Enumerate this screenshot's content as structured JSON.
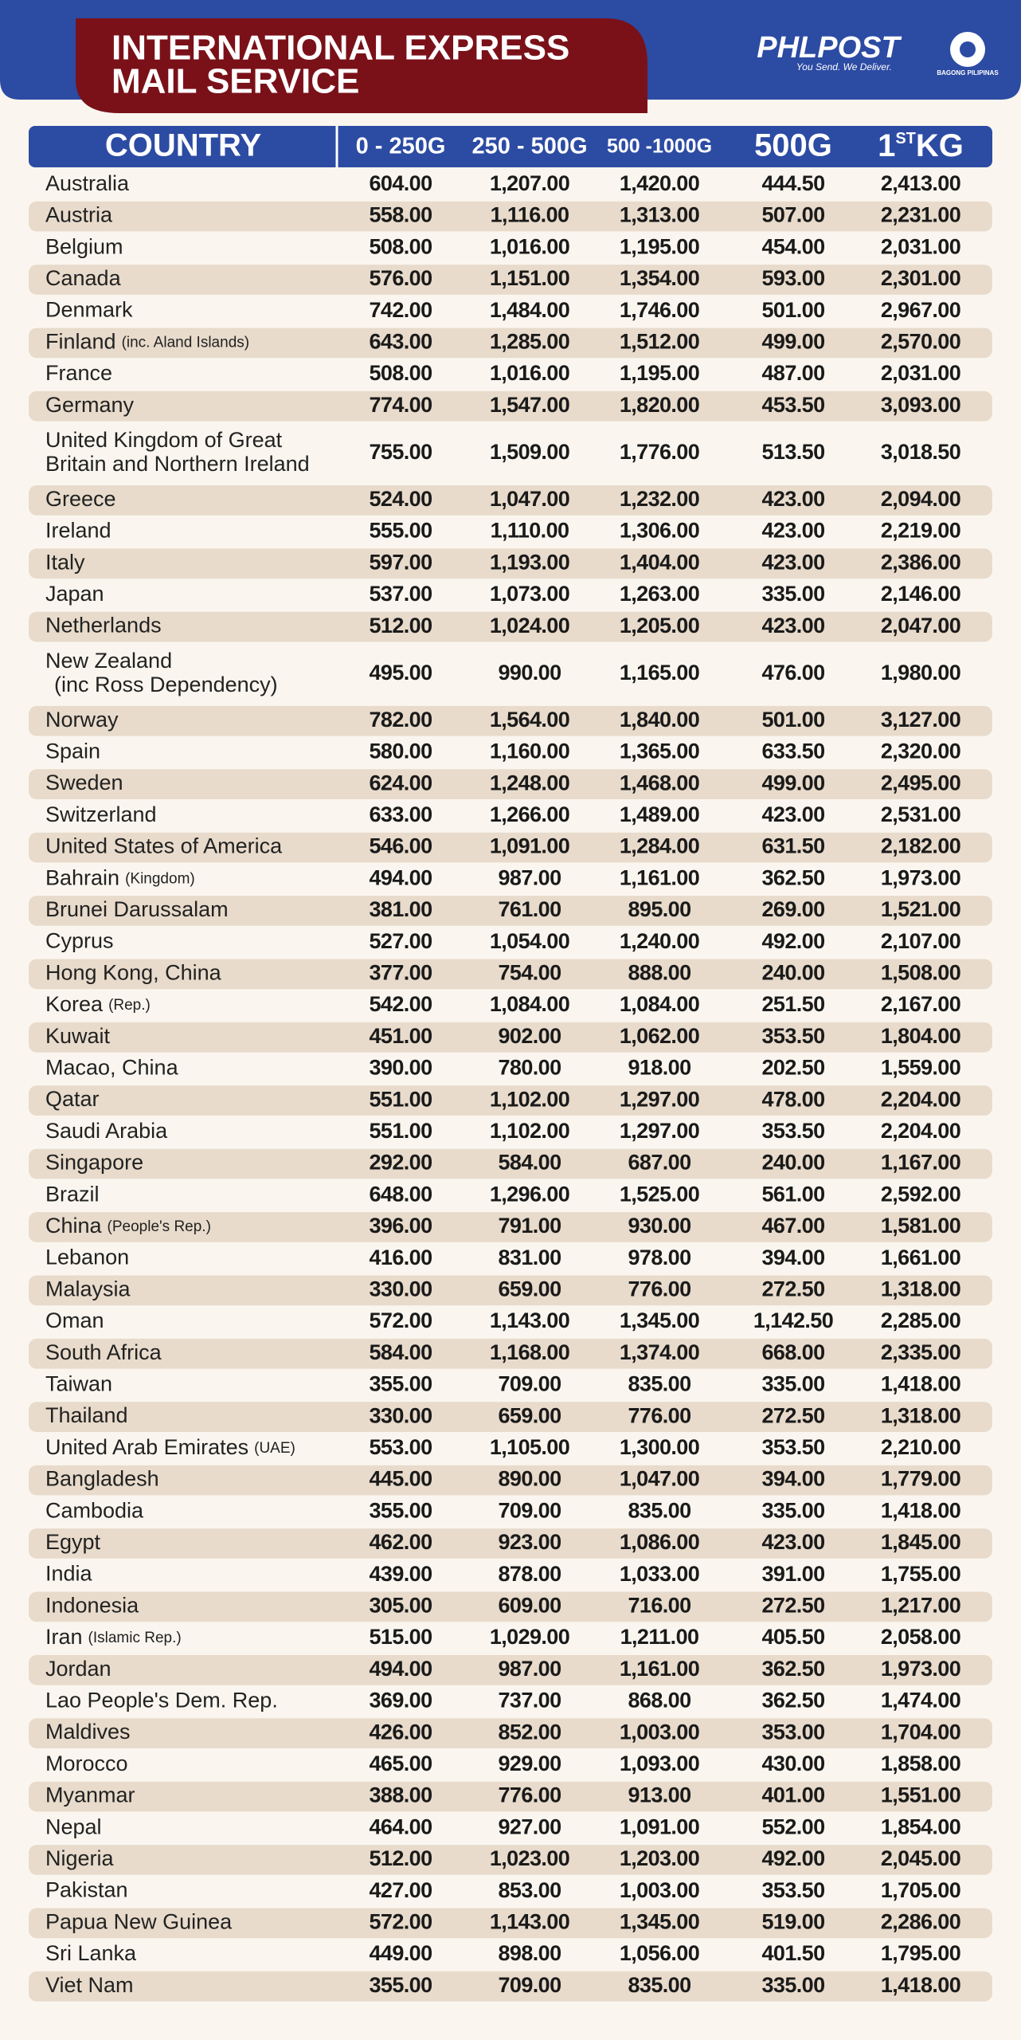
{
  "header": {
    "title_lines": [
      "INTERNATIONAL EXPRESS",
      "MAIL SERVICE"
    ],
    "logo": "PHLPOST",
    "tagline": "You Send. We Deliver.",
    "emblem_text": "BAGONG PILIPINAS"
  },
  "table": {
    "columns": [
      "COUNTRY",
      "0 - 250G",
      "250 - 500G",
      "500 -1000G",
      "500G",
      {
        "main": "1",
        "sup": "ST",
        "rest": "KG"
      }
    ],
    "rows": [
      {
        "country": "Australia",
        "rates": [
          "604.00",
          "1,207.00",
          "1,420.00",
          "444.50",
          "2,413.00"
        ]
      },
      {
        "country": "Austria",
        "rates": [
          "558.00",
          "1,116.00",
          "1,313.00",
          "507.00",
          "2,231.00"
        ]
      },
      {
        "country": "Belgium",
        "rates": [
          "508.00",
          "1,016.00",
          "1,195.00",
          "454.00",
          "2,031.00"
        ]
      },
      {
        "country": "Canada",
        "rates": [
          "576.00",
          "1,151.00",
          "1,354.00",
          "593.00",
          "2,301.00"
        ]
      },
      {
        "country": "Denmark",
        "rates": [
          "742.00",
          "1,484.00",
          "1,746.00",
          "501.00",
          "2,967.00"
        ]
      },
      {
        "country": "Finland",
        "note": "(inc. Aland Islands)",
        "rates": [
          "643.00",
          "1,285.00",
          "1,512.00",
          "499.00",
          "2,570.00"
        ]
      },
      {
        "country": "France",
        "rates": [
          "508.00",
          "1,016.00",
          "1,195.00",
          "487.00",
          "2,031.00"
        ]
      },
      {
        "country": "Germany",
        "rates": [
          "774.00",
          "1,547.00",
          "1,820.00",
          "453.50",
          "3,093.00"
        ]
      },
      {
        "country_lines": [
          "United Kingdom of Great",
          "Britain and Northern Ireland"
        ],
        "rates": [
          "755.00",
          "1,509.00",
          "1,776.00",
          "513.50",
          "3,018.50"
        ]
      },
      {
        "country": "Greece",
        "rates": [
          "524.00",
          "1,047.00",
          "1,232.00",
          "423.00",
          "2,094.00"
        ]
      },
      {
        "country": "Ireland",
        "rates": [
          "555.00",
          "1,110.00",
          "1,306.00",
          "423.00",
          "2,219.00"
        ]
      },
      {
        "country": "Italy",
        "rates": [
          "597.00",
          "1,193.00",
          "1,404.00",
          "423.00",
          "2,386.00"
        ]
      },
      {
        "country": "Japan",
        "rates": [
          "537.00",
          "1,073.00",
          "1,263.00",
          "335.00",
          "2,146.00"
        ]
      },
      {
        "country": "Netherlands",
        "rates": [
          "512.00",
          "1,024.00",
          "1,205.00",
          "423.00",
          "2,047.00"
        ]
      },
      {
        "country_lines": [
          "New Zealand",
          "(inc Ross Dependency)"
        ],
        "rates": [
          "495.00",
          "990.00",
          "1,165.00",
          "476.00",
          "1,980.00"
        ]
      },
      {
        "country": "Norway",
        "rates": [
          "782.00",
          "1,564.00",
          "1,840.00",
          "501.00",
          "3,127.00"
        ]
      },
      {
        "country": "Spain",
        "rates": [
          "580.00",
          "1,160.00",
          "1,365.00",
          "633.50",
          "2,320.00"
        ]
      },
      {
        "country": "Sweden",
        "rates": [
          "624.00",
          "1,248.00",
          "1,468.00",
          "499.00",
          "2,495.00"
        ]
      },
      {
        "country": "Switzerland",
        "rates": [
          "633.00",
          "1,266.00",
          "1,489.00",
          "423.00",
          "2,531.00"
        ]
      },
      {
        "country": "United States of America",
        "rates": [
          "546.00",
          "1,091.00",
          "1,284.00",
          "631.50",
          "2,182.00"
        ]
      },
      {
        "country": "Bahrain",
        "note": "(Kingdom)",
        "rates": [
          "494.00",
          "987.00",
          "1,161.00",
          "362.50",
          "1,973.00"
        ]
      },
      {
        "country": "Brunei Darussalam",
        "rates": [
          "381.00",
          "761.00",
          "895.00",
          "269.00",
          "1,521.00"
        ]
      },
      {
        "country": "Cyprus",
        "rates": [
          "527.00",
          "1,054.00",
          "1,240.00",
          "492.00",
          "2,107.00"
        ]
      },
      {
        "country": "Hong Kong, China",
        "rates": [
          "377.00",
          "754.00",
          "888.00",
          "240.00",
          "1,508.00"
        ]
      },
      {
        "country": "Korea",
        "note": "(Rep.)",
        "rates": [
          "542.00",
          "1,084.00",
          "1,084.00",
          "251.50",
          "2,167.00"
        ]
      },
      {
        "country": "Kuwait",
        "rates": [
          "451.00",
          "902.00",
          "1,062.00",
          "353.50",
          "1,804.00"
        ]
      },
      {
        "country": "Macao, China",
        "rates": [
          "390.00",
          "780.00",
          "918.00",
          "202.50",
          "1,559.00"
        ]
      },
      {
        "country": "Qatar",
        "rates": [
          "551.00",
          "1,102.00",
          "1,297.00",
          "478.00",
          "2,204.00"
        ]
      },
      {
        "country": "Saudi Arabia",
        "rates": [
          "551.00",
          "1,102.00",
          "1,297.00",
          "353.50",
          "2,204.00"
        ]
      },
      {
        "country": "Singapore",
        "rates": [
          "292.00",
          "584.00",
          "687.00",
          "240.00",
          "1,167.00"
        ]
      },
      {
        "country": "Brazil",
        "rates": [
          "648.00",
          "1,296.00",
          "1,525.00",
          "561.00",
          "2,592.00"
        ]
      },
      {
        "country": "China",
        "note": "(People's Rep.)",
        "rates": [
          "396.00",
          "791.00",
          "930.00",
          "467.00",
          "1,581.00"
        ]
      },
      {
        "country": "Lebanon",
        "rates": [
          "416.00",
          "831.00",
          "978.00",
          "394.00",
          "1,661.00"
        ]
      },
      {
        "country": "Malaysia",
        "rates": [
          "330.00",
          "659.00",
          "776.00",
          "272.50",
          "1,318.00"
        ]
      },
      {
        "country": "Oman",
        "rates": [
          "572.00",
          "1,143.00",
          "1,345.00",
          "1,142.50",
          "2,285.00"
        ]
      },
      {
        "country": "South Africa",
        "rates": [
          "584.00",
          "1,168.00",
          "1,374.00",
          "668.00",
          "2,335.00"
        ]
      },
      {
        "country": "Taiwan",
        "rates": [
          "355.00",
          "709.00",
          "835.00",
          "335.00",
          "1,418.00"
        ]
      },
      {
        "country": "Thailand",
        "rates": [
          "330.00",
          "659.00",
          "776.00",
          "272.50",
          "1,318.00"
        ]
      },
      {
        "country": "United Arab Emirates",
        "note": "(UAE)",
        "rates": [
          "553.00",
          "1,105.00",
          "1,300.00",
          "353.50",
          "2,210.00"
        ]
      },
      {
        "country": "Bangladesh",
        "rates": [
          "445.00",
          "890.00",
          "1,047.00",
          "394.00",
          "1,779.00"
        ]
      },
      {
        "country": "Cambodia",
        "rates": [
          "355.00",
          "709.00",
          "835.00",
          "335.00",
          "1,418.00"
        ]
      },
      {
        "country": "Egypt",
        "rates": [
          "462.00",
          "923.00",
          "1,086.00",
          "423.00",
          "1,845.00"
        ]
      },
      {
        "country": "India",
        "rates": [
          "439.00",
          "878.00",
          "1,033.00",
          "391.00",
          "1,755.00"
        ]
      },
      {
        "country": "Indonesia",
        "rates": [
          "305.00",
          "609.00",
          "716.00",
          "272.50",
          "1,217.00"
        ]
      },
      {
        "country": "Iran",
        "note": "(Islamic Rep.)",
        "rates": [
          "515.00",
          "1,029.00",
          "1,211.00",
          "405.50",
          "2,058.00"
        ]
      },
      {
        "country": "Jordan",
        "rates": [
          "494.00",
          "987.00",
          "1,161.00",
          "362.50",
          "1,973.00"
        ]
      },
      {
        "country": "Lao People's Dem. Rep.",
        "rates": [
          "369.00",
          "737.00",
          "868.00",
          "362.50",
          "1,474.00"
        ]
      },
      {
        "country": "Maldives",
        "rates": [
          "426.00",
          "852.00",
          "1,003.00",
          "353.00",
          "1,704.00"
        ]
      },
      {
        "country": "Morocco",
        "rates": [
          "465.00",
          "929.00",
          "1,093.00",
          "430.00",
          "1,858.00"
        ]
      },
      {
        "country": "Myanmar",
        "rates": [
          "388.00",
          "776.00",
          "913.00",
          "401.00",
          "1,551.00"
        ]
      },
      {
        "country": "Nepal",
        "rates": [
          "464.00",
          "927.00",
          "1,091.00",
          "552.00",
          "1,854.00"
        ]
      },
      {
        "country": "Nigeria",
        "rates": [
          "512.00",
          "1,023.00",
          "1,203.00",
          "492.00",
          "2,045.00"
        ]
      },
      {
        "country": "Pakistan",
        "rates": [
          "427.00",
          "853.00",
          "1,003.00",
          "353.50",
          "1,705.00"
        ]
      },
      {
        "country": "Papua New Guinea",
        "rates": [
          "572.00",
          "1,143.00",
          "1,345.00",
          "519.00",
          "2,286.00"
        ]
      },
      {
        "country": "Sri Lanka",
        "rates": [
          "449.00",
          "898.00",
          "1,056.00",
          "401.50",
          "1,795.00"
        ]
      },
      {
        "country": "Viet Nam",
        "rates": [
          "355.00",
          "709.00",
          "835.00",
          "335.00",
          "1,418.00"
        ]
      }
    ]
  }
}
